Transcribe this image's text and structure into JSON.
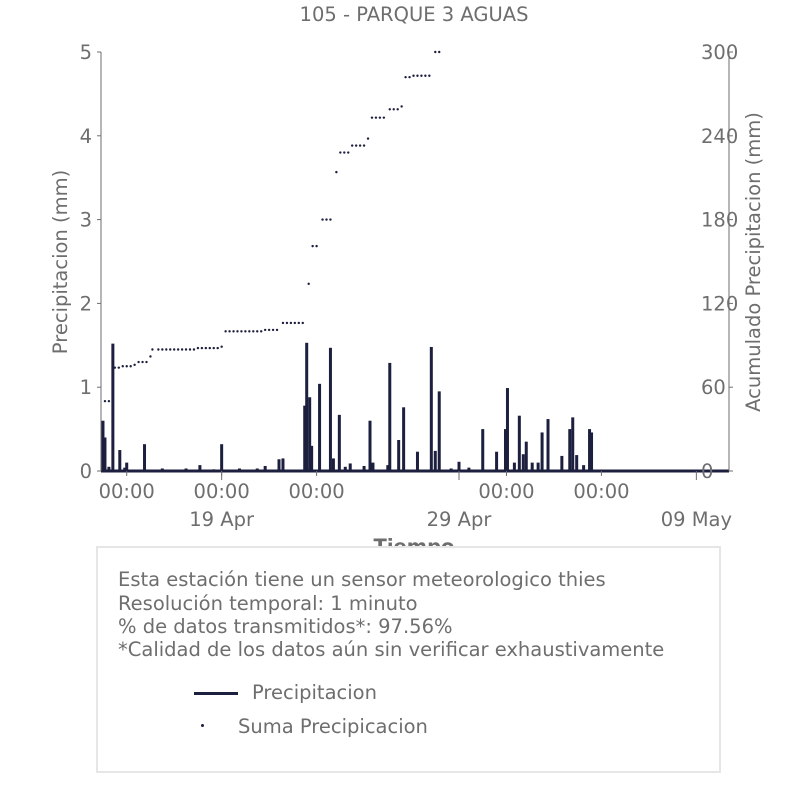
{
  "chart_data": {
    "type": "bar+scatter",
    "title": "105 - PARQUE 3 AGUAS",
    "xlabel": "Tiempo",
    "ylabel": "Precipitacion (mm)",
    "y2label": "Acumulado Precipitacion (mm)",
    "ylim": [
      0,
      5
    ],
    "y2lim": [
      0,
      300
    ],
    "yticks": [
      "0",
      "1",
      "2",
      "3",
      "4",
      "5"
    ],
    "y2ticks": [
      "0",
      "60",
      "120",
      "180",
      "240",
      "300"
    ],
    "xlim": [
      "2024-04-13T22:00",
      "2024-05-10T09:00"
    ],
    "x_time_ticks": [
      {
        "at": "2024-04-15T00:00",
        "label": "00:00"
      },
      {
        "at": "2024-04-19T00:00",
        "label": "00:00"
      },
      {
        "at": "2024-04-23T00:00",
        "label": "00:00"
      },
      {
        "at": "2024-05-01T00:00",
        "label": "00:00"
      },
      {
        "at": "2024-05-05T00:00",
        "label": "00:00"
      }
    ],
    "x_date_ticks": [
      {
        "at": "2024-04-19T00:00",
        "label": "19 Apr"
      },
      {
        "at": "2024-04-29T00:00",
        "label": "29 Apr"
      },
      {
        "at": "2024-05-09T00:00",
        "label": "09 May"
      }
    ],
    "series": [
      {
        "name": "Precipitacion",
        "type": "bar",
        "color": "#1c1f3d",
        "points": [
          [
            "2024-04-14T00:00",
            0.6
          ],
          [
            "2024-04-14T02:00",
            0.4
          ],
          [
            "2024-04-14T06:00",
            0.05
          ],
          [
            "2024-04-14T10:00",
            1.52
          ],
          [
            "2024-04-14T17:00",
            0.25
          ],
          [
            "2024-04-14T22:00",
            0.04
          ],
          [
            "2024-04-15T00:00",
            0.1
          ],
          [
            "2024-04-15T18:00",
            0.32
          ],
          [
            "2024-04-16T12:00",
            0.03
          ],
          [
            "2024-04-17T12:00",
            0.03
          ],
          [
            "2024-04-18T02:00",
            0.07
          ],
          [
            "2024-04-18T16:00",
            0.02
          ],
          [
            "2024-04-19T00:00",
            0.32
          ],
          [
            "2024-04-19T18:00",
            0.03
          ],
          [
            "2024-04-20T12:00",
            0.03
          ],
          [
            "2024-04-20T20:00",
            0.06
          ],
          [
            "2024-04-21T10:00",
            0.14
          ],
          [
            "2024-04-21T14:00",
            0.15
          ],
          [
            "2024-04-22T12:00",
            0.78
          ],
          [
            "2024-04-22T14:00",
            1.53
          ],
          [
            "2024-04-22T17:00",
            0.88
          ],
          [
            "2024-04-22T19:00",
            0.3
          ],
          [
            "2024-04-23T03:00",
            1.04
          ],
          [
            "2024-04-23T14:00",
            1.47
          ],
          [
            "2024-04-23T17:00",
            0.15
          ],
          [
            "2024-04-23T23:00",
            0.67
          ],
          [
            "2024-04-24T05:00",
            0.05
          ],
          [
            "2024-04-24T10:00",
            0.09
          ],
          [
            "2024-04-25T00:00",
            0.06
          ],
          [
            "2024-04-25T06:00",
            0.6
          ],
          [
            "2024-04-25T09:00",
            0.1
          ],
          [
            "2024-04-26T00:00",
            0.07
          ],
          [
            "2024-04-26T02:00",
            1.29
          ],
          [
            "2024-04-26T11:00",
            0.37
          ],
          [
            "2024-04-26T16:00",
            0.76
          ],
          [
            "2024-04-27T06:00",
            0.23
          ],
          [
            "2024-04-27T20:00",
            1.48
          ],
          [
            "2024-04-28T00:00",
            0.24
          ],
          [
            "2024-04-28T04:00",
            0.95
          ],
          [
            "2024-04-28T16:00",
            0.03
          ],
          [
            "2024-04-29T00:00",
            0.11
          ],
          [
            "2024-04-29T10:00",
            0.04
          ],
          [
            "2024-04-30T00:00",
            0.5
          ],
          [
            "2024-04-30T14:00",
            0.23
          ],
          [
            "2024-04-30T23:00",
            0.5
          ],
          [
            "2024-05-01T01:00",
            0.99
          ],
          [
            "2024-05-01T08:00",
            0.1
          ],
          [
            "2024-05-01T13:00",
            0.66
          ],
          [
            "2024-05-01T17:00",
            0.2
          ],
          [
            "2024-05-01T20:00",
            0.35
          ],
          [
            "2024-05-02T02:00",
            0.1
          ],
          [
            "2024-05-02T08:00",
            0.1
          ],
          [
            "2024-05-02T12:00",
            0.46
          ],
          [
            "2024-05-02T18:00",
            0.62
          ],
          [
            "2024-05-03T08:00",
            0.18
          ],
          [
            "2024-05-03T16:00",
            0.5
          ],
          [
            "2024-05-03T19:00",
            0.64
          ],
          [
            "2024-05-03T23:00",
            0.19
          ],
          [
            "2024-05-04T06:00",
            0.07
          ],
          [
            "2024-05-04T12:00",
            0.5
          ],
          [
            "2024-05-04T14:00",
            0.46
          ]
        ]
      },
      {
        "name": "Suma Precipicacion",
        "type": "scatter",
        "color": "#1c1f3d",
        "points": [
          [
            "2024-04-14T02:00",
            50
          ],
          [
            "2024-04-14T06:00",
            50
          ],
          [
            "2024-04-14T12:00",
            74
          ],
          [
            "2024-04-14T16:00",
            74
          ],
          [
            "2024-04-14T20:00",
            75
          ],
          [
            "2024-04-15T00:00",
            75
          ],
          [
            "2024-04-15T04:00",
            75
          ],
          [
            "2024-04-15T08:00",
            76
          ],
          [
            "2024-04-15T12:00",
            78
          ],
          [
            "2024-04-15T16:00",
            78
          ],
          [
            "2024-04-15T20:00",
            78
          ],
          [
            "2024-04-16T00:00",
            82
          ],
          [
            "2024-04-16T02:00",
            87
          ],
          [
            "2024-04-16T08:00",
            87
          ],
          [
            "2024-04-16T12:00",
            87
          ],
          [
            "2024-04-16T16:00",
            87
          ],
          [
            "2024-04-16T20:00",
            87
          ],
          [
            "2024-04-17T00:00",
            87
          ],
          [
            "2024-04-17T04:00",
            87
          ],
          [
            "2024-04-17T08:00",
            87
          ],
          [
            "2024-04-17T12:00",
            87
          ],
          [
            "2024-04-17T16:00",
            87
          ],
          [
            "2024-04-17T20:00",
            87
          ],
          [
            "2024-04-18T00:00",
            88
          ],
          [
            "2024-04-18T04:00",
            88
          ],
          [
            "2024-04-18T08:00",
            88
          ],
          [
            "2024-04-18T12:00",
            88
          ],
          [
            "2024-04-18T16:00",
            88
          ],
          [
            "2024-04-18T20:00",
            88
          ],
          [
            "2024-04-19T00:00",
            89
          ],
          [
            "2024-04-19T04:00",
            100
          ],
          [
            "2024-04-19T08:00",
            100
          ],
          [
            "2024-04-19T12:00",
            100
          ],
          [
            "2024-04-19T16:00",
            100
          ],
          [
            "2024-04-19T20:00",
            100
          ],
          [
            "2024-04-20T00:00",
            100
          ],
          [
            "2024-04-20T04:00",
            100
          ],
          [
            "2024-04-20T08:00",
            100
          ],
          [
            "2024-04-20T12:00",
            100
          ],
          [
            "2024-04-20T16:00",
            100
          ],
          [
            "2024-04-20T20:00",
            101
          ],
          [
            "2024-04-21T00:00",
            101
          ],
          [
            "2024-04-21T04:00",
            101
          ],
          [
            "2024-04-21T08:00",
            101
          ],
          [
            "2024-04-21T14:00",
            106
          ],
          [
            "2024-04-21T18:00",
            106
          ],
          [
            "2024-04-21T22:00",
            106
          ],
          [
            "2024-04-22T02:00",
            106
          ],
          [
            "2024-04-22T06:00",
            106
          ],
          [
            "2024-04-22T10:00",
            106
          ],
          [
            "2024-04-22T16:00",
            134
          ],
          [
            "2024-04-22T20:00",
            161
          ],
          [
            "2024-04-23T00:00",
            161
          ],
          [
            "2024-04-23T06:00",
            180
          ],
          [
            "2024-04-23T10:00",
            180
          ],
          [
            "2024-04-23T14:00",
            180
          ],
          [
            "2024-04-23T20:00",
            214
          ],
          [
            "2024-04-24T00:00",
            228
          ],
          [
            "2024-04-24T04:00",
            228
          ],
          [
            "2024-04-24T08:00",
            228
          ],
          [
            "2024-04-24T12:00",
            233
          ],
          [
            "2024-04-24T16:00",
            233
          ],
          [
            "2024-04-24T20:00",
            233
          ],
          [
            "2024-04-25T00:00",
            233
          ],
          [
            "2024-04-25T04:00",
            238
          ],
          [
            "2024-04-25T08:00",
            253
          ],
          [
            "2024-04-25T12:00",
            253
          ],
          [
            "2024-04-25T16:00",
            253
          ],
          [
            "2024-04-25T20:00",
            253
          ],
          [
            "2024-04-26T02:00",
            259
          ],
          [
            "2024-04-26T06:00",
            259
          ],
          [
            "2024-04-26T10:00",
            259
          ],
          [
            "2024-04-26T14:00",
            261
          ],
          [
            "2024-04-26T18:00",
            282
          ],
          [
            "2024-04-26T22:00",
            282
          ],
          [
            "2024-04-27T02:00",
            283
          ],
          [
            "2024-04-27T06:00",
            283
          ],
          [
            "2024-04-27T10:00",
            283
          ],
          [
            "2024-04-27T14:00",
            283
          ],
          [
            "2024-04-27T18:00",
            283
          ],
          [
            "2024-04-28T00:00",
            300
          ],
          [
            "2024-04-28T04:00",
            300
          ]
        ]
      }
    ]
  },
  "info": {
    "line1": "Esta estación tiene un sensor meteorologico thies",
    "line2": "Resolución temporal: 1 minuto",
    "line3": "% de datos transmitidos*: 97.56%",
    "line4": "*Calidad de los datos aún sin verificar exhaustivamente"
  },
  "legend": {
    "bars_label": "Precipitacion",
    "dots_label": "Suma Precipicacion"
  }
}
